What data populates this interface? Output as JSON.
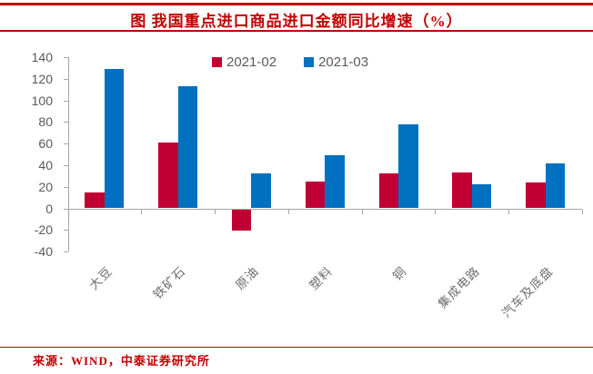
{
  "title": "图 我国重点进口商品进口金额同比增速（%）",
  "source": "来源：WIND，中泰证券研究所",
  "colors": {
    "accent_red": "#C00000",
    "bar_red": "#C00032",
    "bar_blue": "#0070C0",
    "axis_line_gray": "#A6A6A6",
    "label_gray": "#595959"
  },
  "chart_data": {
    "type": "bar",
    "title": "图 我国重点进口商品进口金额同比增速（%）",
    "categories": [
      "大豆",
      "铁矿石",
      "原油",
      "塑料",
      "铜",
      "集成电路",
      "汽车及底盘"
    ],
    "series": [
      {
        "name": "2021-02",
        "color": "#C00032",
        "values": [
          15,
          61,
          -20,
          25,
          32,
          33,
          24
        ]
      },
      {
        "name": "2021-03",
        "color": "#0070C0",
        "values": [
          129,
          113,
          32,
          49,
          78,
          22,
          42
        ]
      }
    ],
    "ylabel": "",
    "xlabel": "",
    "ylim": [
      -40,
      140
    ],
    "ytick_step": 20,
    "yticks": [
      140,
      120,
      100,
      80,
      60,
      40,
      20,
      0,
      -20,
      -40
    ],
    "grid": false,
    "legend_position": "top-center",
    "source": "来源：WIND，中泰证券研究所"
  }
}
